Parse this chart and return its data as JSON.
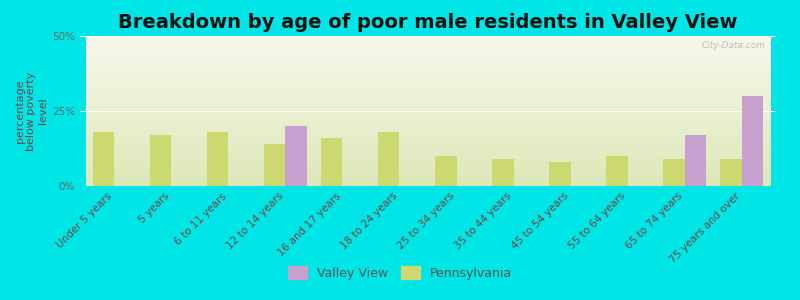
{
  "title": "Breakdown by age of poor male residents in Valley View",
  "ylabel": "percentage\nbelow poverty\nlevel",
  "categories": [
    "Under 5 years",
    "5 years",
    "6 to 11 years",
    "12 to 14 years",
    "16 and 17 years",
    "18 to 24 years",
    "25 to 34 years",
    "35 to 44 years",
    "45 to 54 years",
    "55 to 64 years",
    "65 to 74 years",
    "75 years and over"
  ],
  "valley_view": [
    0,
    0,
    0,
    20,
    0,
    0,
    0,
    0,
    0,
    0,
    17,
    30
  ],
  "pennsylvania": [
    18,
    17,
    18,
    14,
    16,
    18,
    10,
    9,
    8,
    10,
    9,
    9
  ],
  "valley_view_color": "#c8a0d0",
  "pennsylvania_color": "#ccd870",
  "ylim": [
    0,
    50
  ],
  "yticks": [
    0,
    25,
    50
  ],
  "ytick_labels": [
    "0%",
    "25%",
    "50%"
  ],
  "background_color": "#00e5e5",
  "plot_bg_top": "#f8f8ec",
  "plot_bg_bottom": "#dde8b8",
  "title_fontsize": 14,
  "axis_label_fontsize": 8,
  "tick_label_fontsize": 7.5,
  "watermark": "City-Data.com",
  "bar_width": 0.38,
  "legend_labels": [
    "Valley View",
    "Pennsylvania"
  ]
}
